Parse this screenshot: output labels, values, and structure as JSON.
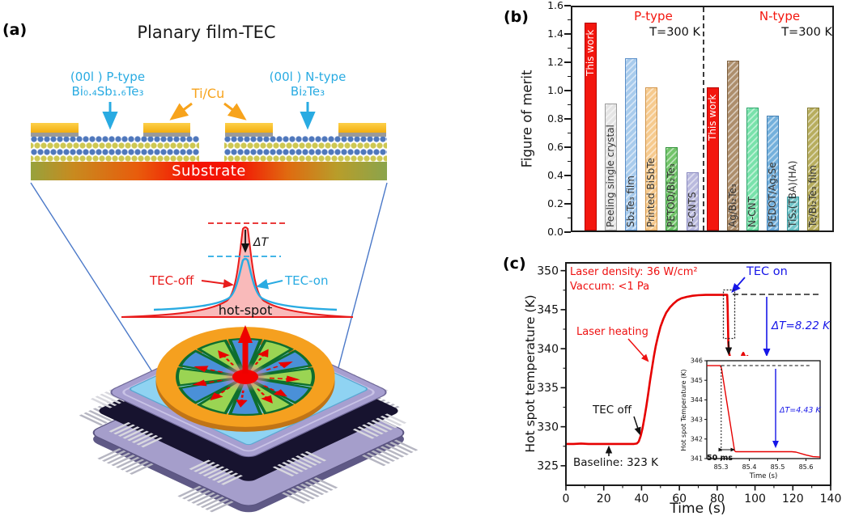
{
  "panels": {
    "a": {
      "tag": "(a)",
      "title": "Planary film-TEC",
      "p_label_1": "(00l ) P-type",
      "p_label_2": "Bi₀.₄Sb₁.₆Te₃",
      "contact_label": "Ti/Cu",
      "n_label_1": "(00l ) N-type",
      "n_label_2": "Bi₂Te₃",
      "substrate_label": "Substrate",
      "curve": {
        "tec_off": "TEC-off",
        "tec_on": "TEC-on",
        "delta_t": "ΔT",
        "hot_spot": "hot-spot"
      },
      "colors": {
        "cyan": "#29abe2",
        "orange": "#f7a31c",
        "wheel_green": "#9ad453",
        "wheel_blue": "#4a90d8",
        "hot_red": "#f30000"
      }
    },
    "b": {
      "tag": "(b)"
    },
    "c": {
      "tag": "(c)"
    }
  },
  "chart_data": [
    {
      "id": "figure-of-merit",
      "type": "bar",
      "ylabel": "Figure of merit",
      "ylim": [
        0,
        1.6
      ],
      "yticks": [
        "0.0",
        "0.2",
        "0.4",
        "0.6",
        "0.8",
        "1.0",
        "1.2",
        "1.4",
        "1.6"
      ],
      "divider": "dashed",
      "legend_position": "none",
      "grid": false,
      "groups": [
        {
          "title": "P-type",
          "note": "T=300 K",
          "bars": [
            {
              "label": "This work",
              "value": 1.47,
              "fill": "#f3160e",
              "edge": "#b50500",
              "text": "#ffffff",
              "pattern": "solid",
              "label_pos": "top"
            },
            {
              "label": "Peeling single crystal",
              "value": 0.9,
              "fill": "#e4e4e4",
              "edge": "#9b9b9b",
              "text": "#333333",
              "pattern": "hatch",
              "label_pos": "bottom"
            },
            {
              "label": "Sb₂Te₃ film",
              "value": 1.22,
              "fill": "#a8cbec",
              "edge": "#5b8fc9",
              "text": "#333333",
              "pattern": "hatch",
              "label_pos": "bottom"
            },
            {
              "label": "Printed BiSbTe",
              "value": 1.01,
              "fill": "#f6ca8e",
              "edge": "#d2954a",
              "text": "#333333",
              "pattern": "hatch",
              "label_pos": "bottom"
            },
            {
              "label": "PETOD/Bi₂Te₃",
              "value": 0.59,
              "fill": "#72c46a",
              "edge": "#2f9138",
              "text": "#333333",
              "pattern": "hatch",
              "label_pos": "bottom"
            },
            {
              "label": "P-CNTS",
              "value": 0.41,
              "fill": "#babade",
              "edge": "#8a8ac0",
              "text": "#333333",
              "pattern": "hatch",
              "label_pos": "bottom"
            }
          ]
        },
        {
          "title": "N-type",
          "note": "T=300 K",
          "bars": [
            {
              "label": "This work",
              "value": 1.01,
              "fill": "#f3160e",
              "edge": "#b50500",
              "text": "#ffffff",
              "pattern": "solid",
              "label_pos": "top"
            },
            {
              "label": "Ag/Bi₂Te₃",
              "value": 1.2,
              "fill": "#ad8e6c",
              "edge": "#7d5f3e",
              "text": "#333333",
              "pattern": "hatch",
              "label_pos": "bottom"
            },
            {
              "label": "N-CNT",
              "value": 0.87,
              "fill": "#79e2ab",
              "edge": "#2aa56a",
              "text": "#333333",
              "pattern": "hatch",
              "label_pos": "bottom"
            },
            {
              "label": "PEDOT/Ag₂Se",
              "value": 0.81,
              "fill": "#74b0dc",
              "edge": "#3f7fb4",
              "text": "#333333",
              "pattern": "hatch",
              "label_pos": "bottom"
            },
            {
              "label": "TiS₂(TBA)(HA)",
              "value": 0.24,
              "fill": "#72c6ca",
              "edge": "#3a969c",
              "text": "#333333",
              "pattern": "hatch",
              "label_pos": "bottom"
            },
            {
              "label": "Te/Bi₂Te₃ film",
              "value": 0.87,
              "fill": "#b7ad5e",
              "edge": "#857c2f",
              "text": "#333333",
              "pattern": "hatch",
              "label_pos": "bottom"
            }
          ]
        }
      ]
    },
    {
      "id": "hot-spot-temperature",
      "type": "line",
      "xlabel": "Time (s)",
      "ylabel": "Hot spot temperature (K)",
      "xlim": [
        0,
        140
      ],
      "ylim": [
        322.5,
        351
      ],
      "xticks": [
        0,
        20,
        40,
        60,
        80,
        100,
        120,
        140
      ],
      "yticks": [
        325,
        330,
        335,
        340,
        345,
        350
      ],
      "grid": false,
      "series": [
        {
          "name": "hot spot temperature",
          "color": "#e60000",
          "points": [
            [
              0,
              327.8
            ],
            [
              4,
              327.8
            ],
            [
              8,
              327.85
            ],
            [
              12,
              327.8
            ],
            [
              16,
              327.8
            ],
            [
              20,
              327.8
            ],
            [
              24,
              327.8
            ],
            [
              28,
              327.8
            ],
            [
              32,
              327.8
            ],
            [
              36,
              327.8
            ],
            [
              37.5,
              327.85
            ],
            [
              38.5,
              328.1
            ],
            [
              39.5,
              328.8
            ],
            [
              40.5,
              329.8
            ],
            [
              41.5,
              331.1
            ],
            [
              42.5,
              332.6
            ],
            [
              43.5,
              334.2
            ],
            [
              44.5,
              335.9
            ],
            [
              45.5,
              337.5
            ],
            [
              46.5,
              339.0
            ],
            [
              47.5,
              340.3
            ],
            [
              48.5,
              341.4
            ],
            [
              50,
              342.8
            ],
            [
              51.5,
              343.8
            ],
            [
              53,
              344.6
            ],
            [
              55,
              345.3
            ],
            [
              57,
              345.8
            ],
            [
              59,
              346.2
            ],
            [
              61,
              346.45
            ],
            [
              64,
              346.65
            ],
            [
              67,
              346.78
            ],
            [
              70,
              346.85
            ],
            [
              74,
              346.9
            ],
            [
              78,
              346.9
            ],
            [
              82,
              346.9
            ],
            [
              85.3,
              346.9
            ],
            [
              85.5,
              345.5
            ],
            [
              85.7,
              343.0
            ],
            [
              85.9,
              340.8
            ],
            [
              86.2,
              339.6
            ],
            [
              86.6,
              339.1
            ],
            [
              87,
              338.95
            ],
            [
              88,
              338.85
            ],
            [
              89.5,
              338.75
            ],
            [
              91,
              338.7
            ],
            [
              92.5,
              338.65
            ],
            [
              93.2,
              339.2
            ],
            [
              93.8,
              339.45
            ],
            [
              94.4,
              339.1
            ],
            [
              95.2,
              338.85
            ],
            [
              96,
              339.05
            ],
            [
              96.8,
              338.75
            ],
            [
              98,
              338.7
            ],
            [
              100,
              338.65
            ],
            [
              103,
              338.6
            ],
            [
              106,
              338.65
            ],
            [
              109,
              338.6
            ],
            [
              112,
              338.6
            ],
            [
              115,
              338.62
            ],
            [
              118,
              338.58
            ],
            [
              121,
              338.62
            ],
            [
              124,
              338.58
            ],
            [
              127,
              338.55
            ],
            [
              130,
              338.52
            ],
            [
              133,
              338.5
            ]
          ]
        }
      ],
      "annotations": {
        "laser_density": "Laser density: 36 W/cm²",
        "vacuum": "Vaccum: <1 Pa",
        "laser_heating": "Laser heating",
        "tec_off": "TEC off",
        "tec_on": "TEC on",
        "baseline": "Baseline: 323 K",
        "delta_t": "ΔT=8.22 K"
      },
      "inset": {
        "xlabel": "Time (s)",
        "ylabel": "Hot spot Temperature (K)",
        "xlim": [
          85.25,
          85.65
        ],
        "ylim": [
          341,
          346
        ],
        "xticks": [
          "85.3",
          "85.4",
          "85.5",
          "85.6"
        ],
        "yticks": [
          341,
          342,
          343,
          344,
          345,
          346
        ],
        "annotations": {
          "delta_t": "ΔT=4.43 K",
          "ms50": "50 ms"
        },
        "points": [
          [
            85.25,
            345.75
          ],
          [
            85.298,
            345.75
          ],
          [
            85.302,
            345.6
          ],
          [
            85.348,
            341.4
          ],
          [
            85.352,
            341.35
          ],
          [
            85.45,
            341.35
          ],
          [
            85.55,
            341.35
          ],
          [
            85.565,
            341.33
          ],
          [
            85.6,
            341.18
          ],
          [
            85.625,
            341.1
          ],
          [
            85.65,
            341.08
          ]
        ]
      }
    }
  ]
}
